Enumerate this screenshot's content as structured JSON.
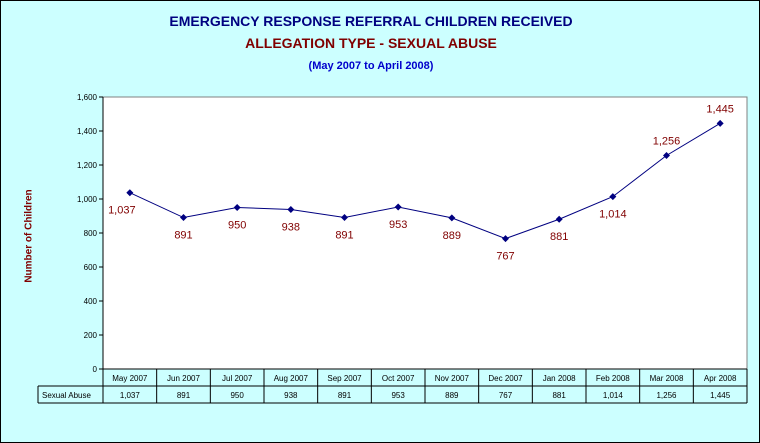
{
  "chart_data": {
    "type": "line",
    "title": "EMERGENCY RESPONSE REFERRAL CHILDREN RECEIVED",
    "subtitle": "ALLEGATION TYPE - SEXUAL ABUSE",
    "period": "(May 2007 to April 2008)",
    "ylabel": "Number of Children",
    "xlabel": "",
    "ylim": [
      0,
      1600
    ],
    "yticks": [
      "0",
      "200",
      "400",
      "600",
      "800",
      "1,000",
      "1,200",
      "1,400",
      "1,600"
    ],
    "categories": [
      "May 2007",
      "Jun 2007",
      "Jul 2007",
      "Aug 2007",
      "Sep 2007",
      "Oct 2007",
      "Nov 2007",
      "Dec 2007",
      "Jan 2008",
      "Feb 2008",
      "Mar 2008",
      "Apr 2008"
    ],
    "series": [
      {
        "name": "Sexual Abuse",
        "values": [
          1037,
          891,
          950,
          938,
          891,
          953,
          889,
          767,
          881,
          1014,
          1256,
          1445
        ],
        "labels": [
          "1,037",
          "891",
          "950",
          "938",
          "891",
          "953",
          "889",
          "767",
          "881",
          "1,014",
          "1,256",
          "1,445"
        ],
        "color": "#000080"
      }
    ],
    "data_table": true,
    "grid": false,
    "colors": {
      "background": "#ccffff",
      "plot_area": "#ffffff",
      "title": "#000080",
      "subtitle": "#800000",
      "period": "#0000cc",
      "data_label": "#800000"
    }
  }
}
